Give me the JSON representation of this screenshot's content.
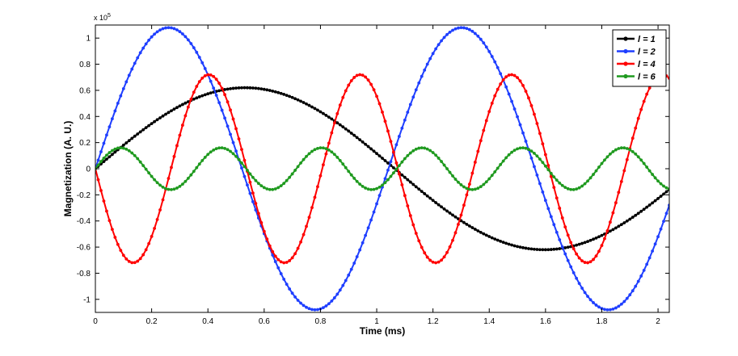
{
  "chart_data": {
    "type": "line",
    "title": "",
    "xlabel": "Time (ms)",
    "ylabel": "Magnetization (A. U.)",
    "y_multiplier_label": "x 10",
    "y_multiplier_exponent": "5",
    "xlim": [
      0,
      2.04
    ],
    "ylim": [
      -1.1,
      1.1
    ],
    "x_ticks": [
      0,
      0.2,
      0.4,
      0.6,
      0.8,
      1,
      1.2,
      1.4,
      1.6,
      1.8,
      2
    ],
    "x_tick_labels": [
      "0",
      "0.2",
      "0.4",
      "0.6",
      "0.8",
      "1",
      "1.2",
      "1.4",
      "1.6",
      "1.8",
      "2"
    ],
    "y_ticks": [
      -1,
      -0.8,
      -0.6,
      -0.4,
      -0.2,
      0,
      0.2,
      0.4,
      0.6,
      0.8,
      1
    ],
    "y_tick_labels": [
      "-1",
      "-0.8",
      "-0.6",
      "-0.4",
      "-0.2",
      "0",
      "0.2",
      "0.4",
      "0.6",
      "0.8",
      "1"
    ],
    "grid": false,
    "legend_position": "top-right",
    "x_step": 0.01,
    "series": [
      {
        "name": "l = 1",
        "color": "#000000",
        "amplitude": 0.62,
        "frequency_per_ms": 0.47,
        "phase": 0.0,
        "sign": 1
      },
      {
        "name": "l = 2",
        "color": "#1f3fff",
        "amplitude": 1.08,
        "frequency_per_ms": 0.96,
        "phase": 0.0,
        "sign": 1
      },
      {
        "name": "l = 4",
        "color": "#ff0000",
        "amplitude": 0.72,
        "frequency_per_ms": 1.86,
        "phase": 0.0,
        "sign": -1
      },
      {
        "name": "l = 6",
        "color": "#1f9a1f",
        "amplitude": 0.16,
        "frequency_per_ms": 2.8,
        "phase": 0.0,
        "sign": 1
      }
    ]
  }
}
